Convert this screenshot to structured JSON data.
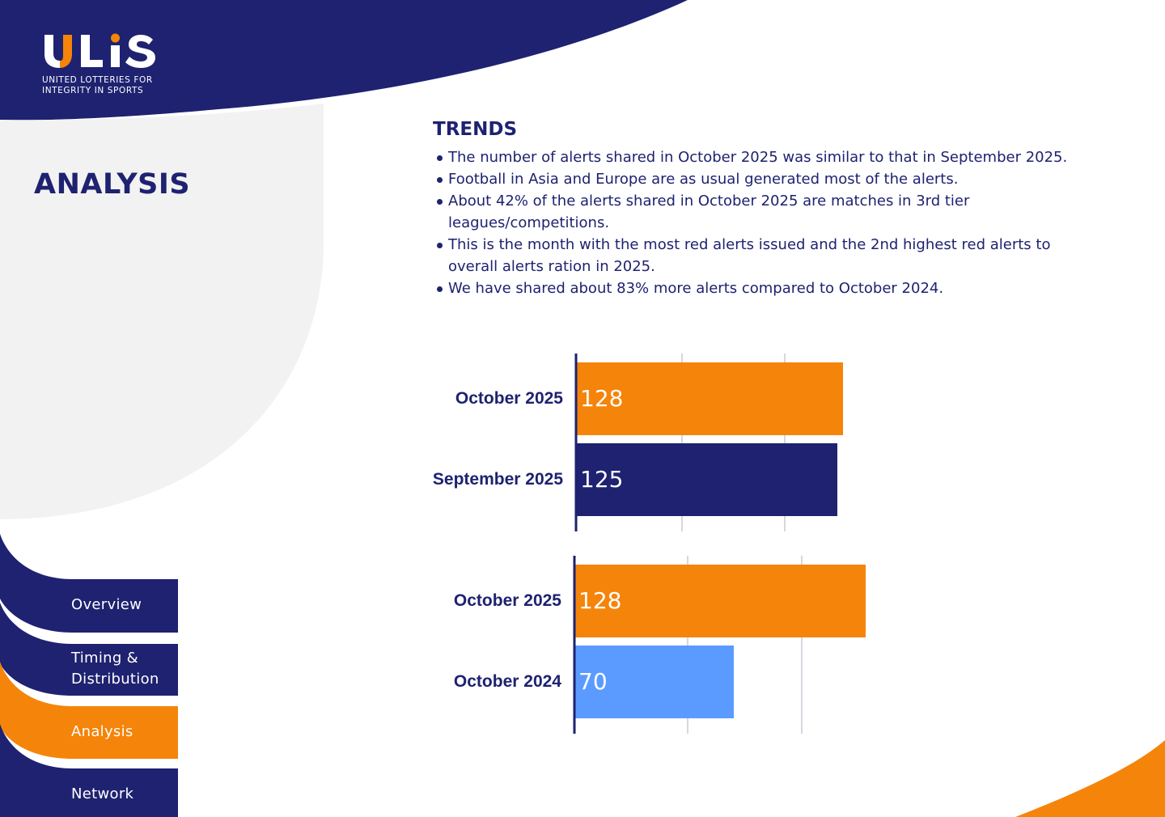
{
  "brand": {
    "name": "ULIS",
    "tagline_line1": "UNITED LOTTERIES FOR",
    "tagline_line2": "INTEGRITY IN SPORTS"
  },
  "page_title": "ANALYSIS",
  "nav": {
    "items": [
      {
        "label": "Overview"
      },
      {
        "label": "Timing &"
      },
      {
        "label": "Distribution"
      },
      {
        "label": "Analysis"
      },
      {
        "label": "Network"
      }
    ],
    "active": "Analysis"
  },
  "trends": {
    "title": "TRENDS",
    "bullets": [
      "The number of alerts shared in October 2025 was similar to that in September 2025.",
      "Football in Asia and Europe are as usual generated most of the alerts.",
      "About 42% of the alerts shared in October 2025 are matches in 3rd tier leagues/competitions.",
      "This is the month with the most red alerts issued and the 2nd highest red alerts to overall alerts ration in 2025.",
      "We have shared about 83% more alerts compared to October 2024."
    ]
  },
  "colors": {
    "navy": "#1e2270",
    "orange": "#f5840a",
    "light_blue": "#5b9bff",
    "grey_bg": "#f2f2f2"
  },
  "chart_data": [
    {
      "type": "bar",
      "orientation": "horizontal",
      "categories": [
        "October 2025",
        "September 2025"
      ],
      "values": [
        128,
        125
      ],
      "bar_colors": [
        "#f5840a",
        "#1e2270"
      ],
      "xlim": [
        0,
        140
      ],
      "grid": true
    },
    {
      "type": "bar",
      "orientation": "horizontal",
      "categories": [
        "October 2025",
        "October 2024"
      ],
      "values": [
        128,
        70
      ],
      "bar_colors": [
        "#f5840a",
        "#5b9bff"
      ],
      "xlim": [
        0,
        140
      ],
      "grid": true
    }
  ]
}
